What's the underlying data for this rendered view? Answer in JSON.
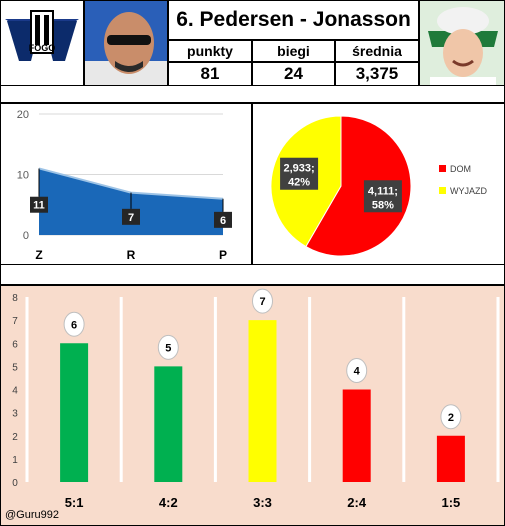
{
  "header": {
    "title": "6. Pedersen - Jonasson",
    "stats": [
      {
        "label": "punkty",
        "value": "81"
      },
      {
        "label": "biegi",
        "value": "24"
      },
      {
        "label": "średnia",
        "value": "3,375"
      }
    ],
    "logo_text": "FOGO",
    "credit": "@Guru992"
  },
  "chart_data": [
    {
      "type": "area",
      "categories": [
        "Z",
        "R",
        "P"
      ],
      "values": [
        11,
        7,
        6
      ],
      "data_labels": [
        "11",
        "7",
        "6"
      ],
      "ylim": [
        0,
        20
      ],
      "yticks": [
        "0",
        "10",
        "20"
      ],
      "grid": true,
      "colors": {
        "fill": "#1a68b8",
        "line": "#9dc3e6",
        "grid": "#d9d9d9"
      }
    },
    {
      "type": "pie",
      "slices": [
        {
          "name": "DOM",
          "value": 4.111,
          "label": "4,111;",
          "pct": "58%",
          "color": "#ff0000"
        },
        {
          "name": "WYJAZD",
          "value": 2.933,
          "label": "2,933;",
          "pct": "42%",
          "color": "#ffff00"
        }
      ],
      "legend": "right"
    },
    {
      "type": "bar",
      "categories": [
        "5:1",
        "4:2",
        "3:3",
        "2:4",
        "1:5"
      ],
      "values": [
        6,
        5,
        7,
        4,
        2
      ],
      "data_labels": [
        "6",
        "5",
        "7",
        "4",
        "2"
      ],
      "colors": [
        "#00b050",
        "#00b050",
        "#ffff00",
        "#ff0000",
        "#ff0000"
      ],
      "ylim": [
        0,
        8
      ],
      "yticks": [
        "0",
        "1",
        "2",
        "3",
        "4",
        "5",
        "6",
        "7",
        "8"
      ],
      "grid": true,
      "background": "#f8dccc"
    }
  ]
}
